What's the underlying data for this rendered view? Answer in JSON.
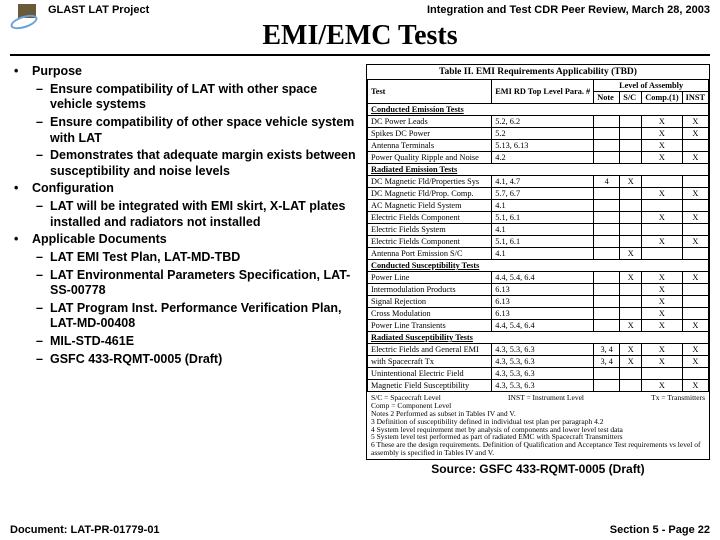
{
  "header": {
    "project": "GLAST LAT Project",
    "review": "Integration and Test CDR Peer Review, March 28, 2003",
    "title": "EMI/EMC Tests"
  },
  "bullets": {
    "blockA": [
      {
        "label": "Purpose",
        "sub": [
          "Ensure compatibility of LAT with other space vehicle systems",
          "Ensure compatibility of other space vehicle system with  LAT",
          "Demonstrates that adequate margin exists between susceptibility and noise levels"
        ]
      },
      {
        "label": "Configuration",
        "sub": [
          "LAT will be integrated with EMI skirt, X-LAT plates installed and radiators not installed"
        ]
      }
    ],
    "blockB": [
      {
        "label": "Applicable Documents",
        "sub": [
          "LAT EMI Test Plan, LAT-MD-TBD",
          "LAT Environmental Parameters Specification, LAT-SS-00778",
          "LAT Program Inst. Performance Verification Plan, LAT-MD-00408",
          "MIL-STD-461E",
          "GSFC 433-RQMT-0005 (Draft)"
        ]
      }
    ]
  },
  "table": {
    "caption": "Table II.  EMI Requirements Applicability (TBD)",
    "head": {
      "test": "Test",
      "rd": "EMI RD Top\nLevel Para. #",
      "loa": "Level of Assembly",
      "note": "Note",
      "sc": "S/C",
      "comp": "Comp.(1)",
      "inst": "INST"
    },
    "sections": [
      {
        "title": "Conducted Emission Tests",
        "rows": [
          {
            "t": "DC Power Leads",
            "r": "5.2, 6.2",
            "n": "",
            "s": "",
            "c": "X",
            "i": "X"
          },
          {
            "t": "Spikes DC Power",
            "r": "5.2",
            "n": "",
            "s": "",
            "c": "X",
            "i": "X"
          },
          {
            "t": "Antenna Terminals",
            "r": "5.13, 6.13",
            "n": "",
            "s": "",
            "c": "X",
            "i": ""
          },
          {
            "t": "Power Quality Ripple and Noise",
            "r": "4.2",
            "n": "",
            "s": "",
            "c": "X",
            "i": "X"
          }
        ]
      },
      {
        "title": "Radiated Emission Tests",
        "rows": [
          {
            "t": "DC Magnetic Fld/Properties Sys",
            "r": "4.1, 4.7",
            "n": "4",
            "s": "X",
            "c": "",
            "i": ""
          },
          {
            "t": "DC Magnetic Fld/Prop. Comp.",
            "r": "5.7, 6.7",
            "n": "",
            "s": "",
            "c": "X",
            "i": "X"
          },
          {
            "t": "AC Magnetic Field System",
            "r": "4.1",
            "n": "",
            "s": "",
            "c": "",
            "i": ""
          },
          {
            "t": "Electric Fields Component",
            "r": "5.1, 6.1",
            "n": "",
            "s": "",
            "c": "X",
            "i": "X"
          },
          {
            "t": "Electric Fields System",
            "r": "4.1",
            "n": "",
            "s": "",
            "c": "",
            "i": ""
          },
          {
            "t": "Electric Fields Component",
            "r": "5.1, 6.1",
            "n": "",
            "s": "",
            "c": "X",
            "i": "X"
          },
          {
            "t": "Antenna Port Emission S/C",
            "r": "4.1",
            "n": "",
            "s": "X",
            "c": "",
            "i": ""
          }
        ]
      },
      {
        "title": "Conducted Susceptibility Tests",
        "rows": [
          {
            "t": "Power Line",
            "r": "4.4, 5.4, 6.4",
            "n": "",
            "s": "X",
            "c": "X",
            "i": "X"
          },
          {
            "t": "Intermodulation Products",
            "r": "6.13",
            "n": "",
            "s": "",
            "c": "X",
            "i": ""
          },
          {
            "t": "Signal Rejection",
            "r": "6.13",
            "n": "",
            "s": "",
            "c": "X",
            "i": ""
          },
          {
            "t": "Cross Modulation",
            "r": "6.13",
            "n": "",
            "s": "",
            "c": "X",
            "i": ""
          },
          {
            "t": "Power Line Transients",
            "r": "4.4, 5.4, 6.4",
            "n": "",
            "s": "X",
            "c": "X",
            "i": "X"
          }
        ]
      },
      {
        "title": "Radiated Susceptibility Tests",
        "rows": [
          {
            "t": "Electric Fields and General EMI",
            "r": "4.3, 5.3, 6.3",
            "n": "3, 4",
            "s": "X",
            "c": "X",
            "i": "X"
          },
          {
            "t": "with Spacecraft Tx",
            "r": "4.3, 5.3, 6.3",
            "n": "3, 4",
            "s": "X",
            "c": "X",
            "i": "X"
          },
          {
            "t": "Unintentional Electric Field",
            "r": "4.3, 5.3, 6.3",
            "n": "",
            "s": "",
            "c": "",
            "i": ""
          },
          {
            "t": "Magnetic Field Susceptibility",
            "r": "4.3, 5.3, 6.3",
            "n": "",
            "s": "",
            "c": "X",
            "i": "X"
          }
        ]
      }
    ],
    "legend": {
      "sc": "S/C = Spacecraft Level",
      "comp": "Comp = Component Level",
      "inst": "INST = Instrument Level",
      "tx": "Tx = Transmitters"
    },
    "notes": [
      "Notes 2  Performed as subset in Tables IV and V.",
      "3  Definition of susceptibility defined in individual test plan per paragraph 4.2",
      "4  System level requirement met by analysis of components and lower level test data",
      "5  System level test performed as part of radiated EMC with Spacecraft Transmitters",
      "6  These are the design requirements. Definition of Qualification and Acceptance Test requirements vs level of assembly is specified in Tables IV and V."
    ]
  },
  "source": "Source: GSFC 433-RQMT-0005 (Draft)",
  "footer": {
    "doc": "Document: LAT-PR-01779-01",
    "page": "Section 5 - Page 22"
  }
}
